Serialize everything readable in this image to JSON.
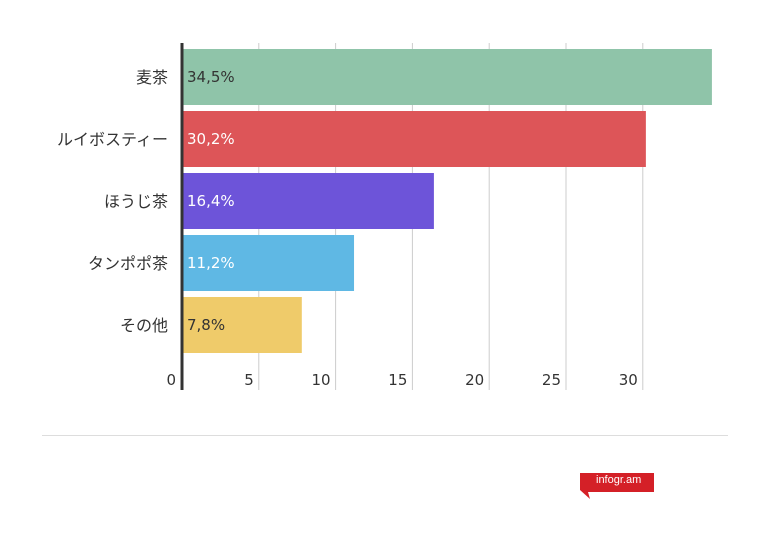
{
  "chart_data": {
    "type": "bar",
    "orientation": "horizontal",
    "categories": [
      "麦茶",
      "ルイボスティー",
      "ほうじ茶",
      "タンポポ茶",
      "その他"
    ],
    "values": [
      34.5,
      30.2,
      16.4,
      11.2,
      7.8
    ],
    "value_labels": [
      "34,5%",
      "30,2%",
      "16,4%",
      "11,2%",
      "7,8%"
    ],
    "colors": [
      "#8fc4a9",
      "#dd5558",
      "#6d54d9",
      "#5fb8e4",
      "#efcb6a"
    ],
    "label_colors": [
      "#333333",
      "#ffffff",
      "#ffffff",
      "#ffffff",
      "#333333"
    ],
    "x_ticks": [
      "0",
      "5",
      "10",
      "15",
      "20",
      "25",
      "30"
    ],
    "xlim": [
      0,
      35
    ],
    "grid": true,
    "title": "",
    "xlabel": "",
    "ylabel": ""
  },
  "footer": {
    "logo_text": "infogr.am",
    "logo_color": "#d42027"
  }
}
